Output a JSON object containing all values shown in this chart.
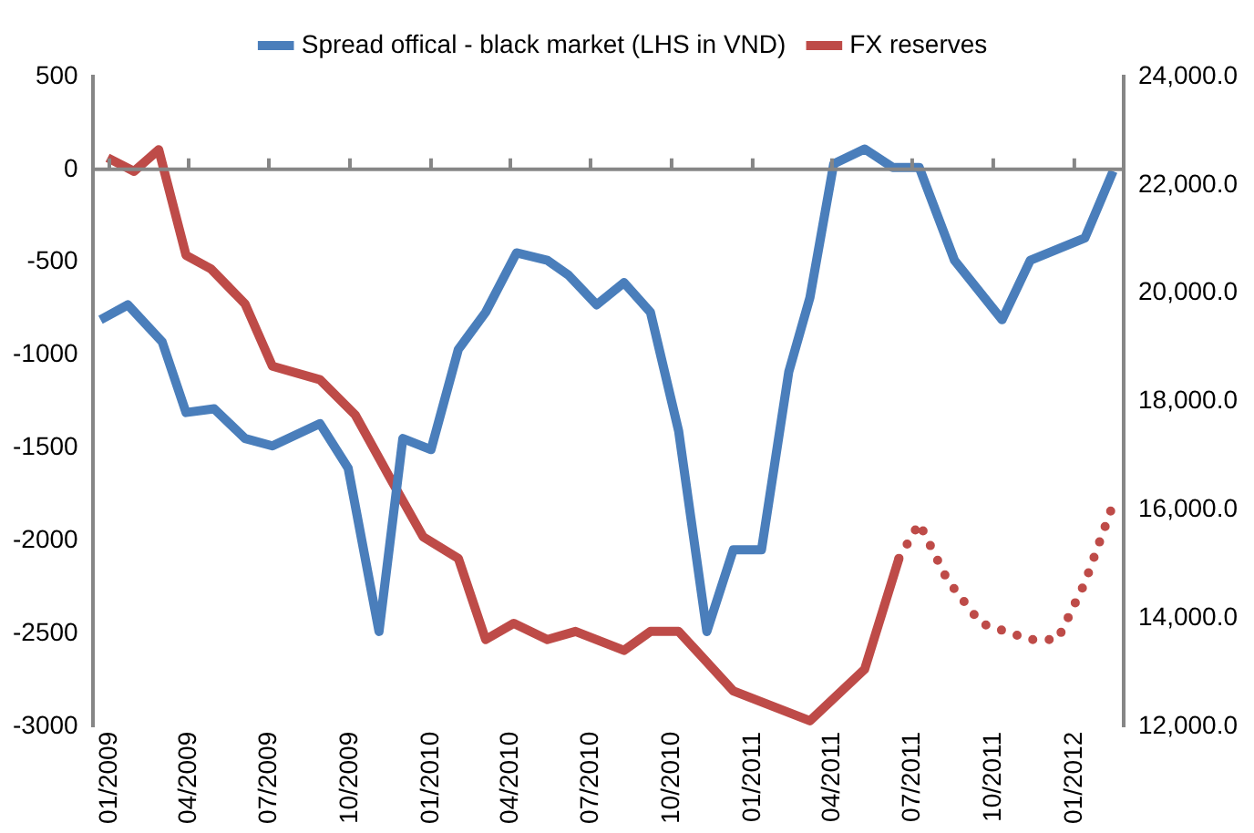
{
  "chart_data": {
    "type": "line",
    "legend": "top",
    "line_style": "solid",
    "marker": "none",
    "xlim": [
      "2008-12-13",
      "2012-02-26"
    ],
    "xticks": [
      {
        "value": "2009-01-01",
        "label": "01/2009"
      },
      {
        "value": "2009-04-01",
        "label": "04/2009"
      },
      {
        "value": "2009-07-01",
        "label": "07/2009"
      },
      {
        "value": "2009-10-01",
        "label": "10/2009"
      },
      {
        "value": "2010-01-01",
        "label": "01/2010"
      },
      {
        "value": "2010-04-01",
        "label": "04/2010"
      },
      {
        "value": "2010-07-01",
        "label": "07/2010"
      },
      {
        "value": "2010-10-01",
        "label": "10/2010"
      },
      {
        "value": "2011-01-01",
        "label": "01/2011"
      },
      {
        "value": "2011-04-01",
        "label": "04/2011"
      },
      {
        "value": "2011-07-01",
        "label": "07/2011"
      },
      {
        "value": "2011-10-01",
        "label": "10/2011"
      },
      {
        "value": "2012-01-01",
        "label": "01/2012"
      }
    ],
    "ylim": [
      -3000,
      500
    ],
    "yticks": [
      -3000,
      -2500,
      -2000,
      -1500,
      -1000,
      -500,
      0,
      500
    ],
    "y2lim": [
      12000,
      24000
    ],
    "y2ticks": [
      {
        "value": 12000,
        "label": "12,000.0"
      },
      {
        "value": 14000,
        "label": "14,000.0"
      },
      {
        "value": 16000,
        "label": "16,000.0"
      },
      {
        "value": 18000,
        "label": "18,000.0"
      },
      {
        "value": 20000,
        "label": "20,000.0"
      },
      {
        "value": 22000,
        "label": "22,000.0"
      },
      {
        "value": 24000,
        "label": "24,000.0"
      }
    ],
    "series": [
      {
        "name": "Spread offical - black market (LHS in VND)",
        "color": "#4a7ebb",
        "x": [
          "2008-12-22",
          "2009-01-22",
          "2009-03-02",
          "2009-03-29",
          "2009-04-30",
          "2009-06-04",
          "2009-07-05",
          "2009-08-28",
          "2009-09-29",
          "2009-11-03",
          "2009-11-30",
          "2010-01-01",
          "2010-02-01",
          "2010-03-04",
          "2010-04-08",
          "2010-05-13",
          "2010-06-06",
          "2010-07-08",
          "2010-08-08",
          "2010-09-07",
          "2010-10-09",
          "2010-11-10",
          "2010-12-10",
          "2011-01-11",
          "2011-02-11",
          "2011-03-07",
          "2011-04-03",
          "2011-05-08",
          "2011-06-09",
          "2011-07-09",
          "2011-08-18",
          "2011-10-11",
          "2011-11-12",
          "2012-01-13",
          "2012-02-14"
        ],
        "values": [
          -810,
          -730,
          -930,
          -1310,
          -1290,
          -1450,
          -1490,
          -1370,
          -1610,
          -2490,
          -1450,
          -1510,
          -970,
          -770,
          -450,
          -490,
          -570,
          -730,
          -610,
          -770,
          -1410,
          -2490,
          -2050,
          -2050,
          -1090,
          -690,
          30,
          110,
          10,
          10,
          -490,
          -810,
          -490,
          -370,
          -10
        ]
      },
      {
        "name": "FX reserves",
        "color": "#be4b48",
        "axis": "y2",
        "x": [
          "2008-12-30",
          "2009-01-29",
          "2009-02-26",
          "2009-03-29",
          "2009-04-26",
          "2009-06-04",
          "2009-07-05",
          "2009-08-28",
          "2009-10-07",
          "2009-11-15",
          "2009-12-23",
          "2010-02-01",
          "2010-03-04",
          "2010-04-05",
          "2010-05-13",
          "2010-06-14",
          "2010-08-08",
          "2010-09-07",
          "2010-10-09",
          "2010-12-10",
          "2011-03-07",
          "2011-05-08",
          "2011-06-16"
        ],
        "values": [
          22500,
          22250,
          22650,
          20700,
          20450,
          19800,
          18650,
          18400,
          17750,
          16600,
          15500,
          15100,
          13600,
          13900,
          13600,
          13750,
          13400,
          13750,
          13750,
          12650,
          12100,
          13050,
          15100
        ]
      },
      {
        "color": "#be4b48",
        "axis": "y2",
        "line_style": "dotted",
        "x": [
          "2011-06-16",
          "2011-07-09",
          "2011-08-10",
          "2011-09-17",
          "2011-11-12",
          "2011-12-13",
          "2012-01-13",
          "2012-02-14"
        ],
        "values": [
          15100,
          15750,
          14700,
          13900,
          13600,
          13600,
          14650,
          16100
        ]
      }
    ]
  }
}
